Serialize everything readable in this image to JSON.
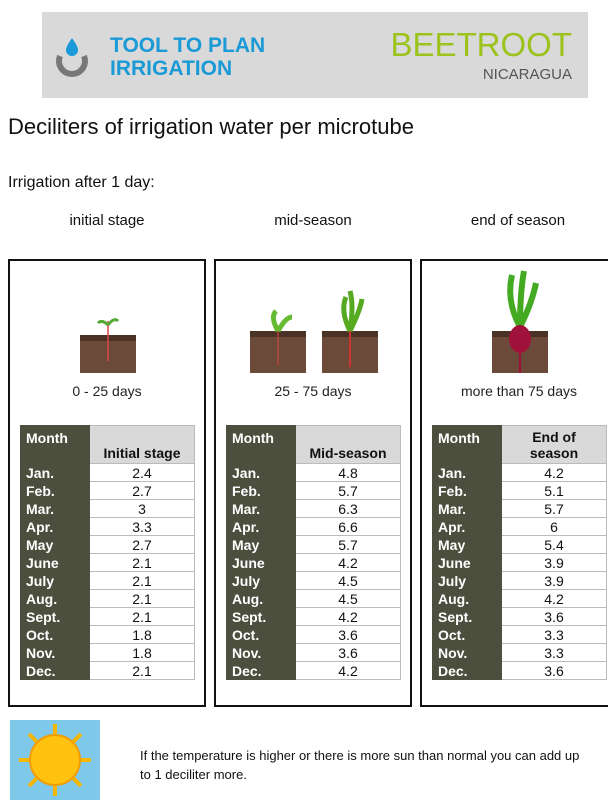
{
  "header": {
    "title_lines": [
      "TOOL TO PLAN",
      "IRRIGATION"
    ],
    "brand": "BEETROOT",
    "country": "NICARAGUA"
  },
  "heading": "Deciliters of irrigation water per microtube",
  "subheading": "Irrigation after 1 day:",
  "stages": [
    {
      "label": "initial stage",
      "days": "0 - 25 days",
      "columns": [
        "Month",
        "Initial stage"
      ],
      "rows": [
        [
          "Jan.",
          "2.4"
        ],
        [
          "Feb.",
          "2.7"
        ],
        [
          "Mar.",
          "3"
        ],
        [
          "Apr.",
          "3.3"
        ],
        [
          "May",
          "2.7"
        ],
        [
          "June",
          "2.1"
        ],
        [
          "July",
          "2.1"
        ],
        [
          "Aug.",
          "2.1"
        ],
        [
          "Sept.",
          "2.1"
        ],
        [
          "Oct.",
          "1.8"
        ],
        [
          "Nov.",
          "1.8"
        ],
        [
          "Dec.",
          "2.1"
        ]
      ]
    },
    {
      "label": "mid-season",
      "days": "25 - 75 days",
      "columns": [
        "Month",
        "Mid-season"
      ],
      "rows": [
        [
          "Jan.",
          "4.8"
        ],
        [
          "Feb.",
          "5.7"
        ],
        [
          "Mar.",
          "6.3"
        ],
        [
          "Apr.",
          "6.6"
        ],
        [
          "May",
          "5.7"
        ],
        [
          "June",
          "4.2"
        ],
        [
          "July",
          "4.5"
        ],
        [
          "Aug.",
          "4.5"
        ],
        [
          "Sept.",
          "4.2"
        ],
        [
          "Oct.",
          "3.6"
        ],
        [
          "Nov.",
          "3.6"
        ],
        [
          "Dec.",
          "4.2"
        ]
      ]
    },
    {
      "label": "end of season",
      "days": "more than 75 days",
      "columns": [
        "Month",
        "End of season"
      ],
      "rows": [
        [
          "Jan.",
          "4.2"
        ],
        [
          "Feb.",
          "5.1"
        ],
        [
          "Mar.",
          "5.7"
        ],
        [
          "Apr.",
          "6"
        ],
        [
          "May",
          "5.4"
        ],
        [
          "June",
          "3.9"
        ],
        [
          "July",
          "3.9"
        ],
        [
          "Aug.",
          "4.2"
        ],
        [
          "Sept.",
          "3.6"
        ],
        [
          "Oct.",
          "3.3"
        ],
        [
          "Nov.",
          "3.3"
        ],
        [
          "Dec.",
          "3.6"
        ]
      ]
    }
  ],
  "note": "If the temperature is higher or there is more sun than normal you can add up to 1 deciliter more."
}
